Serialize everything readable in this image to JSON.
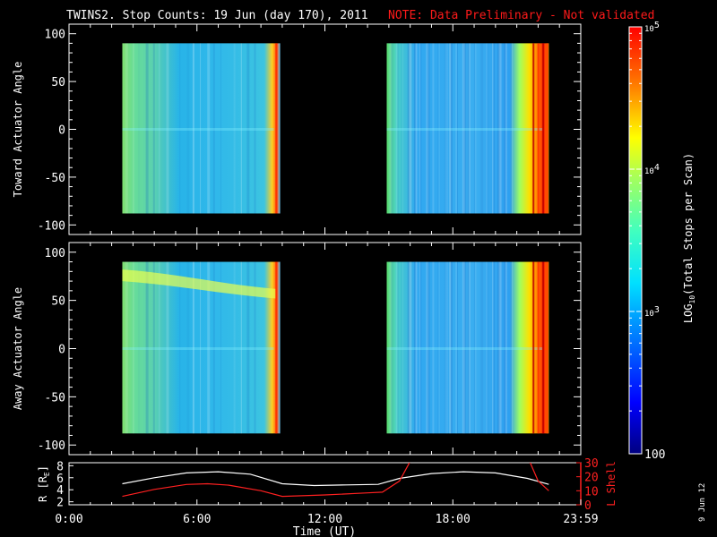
{
  "header": {
    "title": "TWINS2. Stop Counts: 19 Jun (day 170), 2011",
    "note": "NOTE: Data Preliminary - Not validated"
  },
  "colors": {
    "background": "#000000",
    "axes": "#ffffff",
    "note": "#ff1a1a",
    "r_line": "#ffffff",
    "lshell_line": "#ff2020"
  },
  "colorbar": {
    "label": "LOG10(Total Stops per Scan)",
    "label_prefix": "LOG",
    "label_sub": "10",
    "label_suffix": "(Total Stops per Scan)",
    "range": [
      100,
      100000
    ],
    "scale": "log",
    "ticks": [
      {
        "value": 100,
        "base": "100",
        "exp": ""
      },
      {
        "value": 1000,
        "base": "10",
        "exp": "3"
      },
      {
        "value": 10000,
        "base": "10",
        "exp": "4"
      },
      {
        "value": 100000,
        "base": "10",
        "exp": "5"
      }
    ]
  },
  "footer": {
    "xlabel": "Time (UT)",
    "date_stamp": "9 Jun 12"
  },
  "chart_data": [
    {
      "type": "heatmap",
      "name": "toward",
      "ylabel": "Toward Actuator Angle",
      "xlim": [
        0,
        24
      ],
      "ylim": [
        -110,
        110
      ],
      "yticks": [
        -100,
        -50,
        0,
        50,
        100
      ],
      "grid": false,
      "data_blocks": [
        {
          "x": [
            2.5,
            9.9
          ],
          "y": [
            -88,
            90
          ],
          "mean_log10_counts": 3.1
        },
        {
          "x": [
            14.9,
            22.5
          ],
          "y": [
            -88,
            90
          ],
          "mean_log10_counts": 3.2
        }
      ]
    },
    {
      "type": "heatmap",
      "name": "away",
      "ylabel": "Away Actuator Angle",
      "xlim": [
        0,
        24
      ],
      "ylim": [
        -110,
        110
      ],
      "yticks": [
        -100,
        -50,
        0,
        50,
        100
      ],
      "grid": false,
      "data_blocks": [
        {
          "x": [
            2.5,
            9.9
          ],
          "y": [
            -88,
            90
          ],
          "mean_log10_counts": 3.2
        },
        {
          "x": [
            14.9,
            22.5
          ],
          "y": [
            -88,
            90
          ],
          "mean_log10_counts": 3.2
        }
      ]
    },
    {
      "type": "line",
      "name": "orbit",
      "xlabel": "Time (UT)",
      "xticks": [
        {
          "value": 0,
          "label": "0:00"
        },
        {
          "value": 6,
          "label": "6:00"
        },
        {
          "value": 12,
          "label": "12:00"
        },
        {
          "value": 18,
          "label": "18:00"
        },
        {
          "value": 24,
          "label": "23:59"
        }
      ],
      "xlim": [
        0,
        24
      ],
      "left_axis": {
        "label": "R [RE]",
        "label_main": "R [R",
        "label_sub": "E",
        "label_end": "]",
        "ylim": [
          1.5,
          8.5
        ],
        "ticks": [
          2,
          4,
          6,
          8
        ]
      },
      "right_axis": {
        "label": "L Shell",
        "ylim": [
          0,
          30
        ],
        "ticks": [
          0,
          10,
          20,
          30
        ]
      },
      "series": [
        {
          "name": "R",
          "axis": "left",
          "x": [
            2.5,
            4,
            5.5,
            7,
            8.5,
            10,
            11.5,
            13,
            14.5,
            15.5,
            17,
            18.5,
            20,
            21.5,
            22.5
          ],
          "values": [
            5.0,
            6.0,
            6.8,
            7.0,
            6.6,
            5.0,
            4.7,
            4.8,
            4.9,
            5.9,
            6.7,
            7.0,
            6.8,
            5.9,
            4.9
          ]
        },
        {
          "name": "L Shell",
          "axis": "right",
          "x": [
            2.5,
            4,
            5.5,
            6.5,
            7.5,
            9,
            10,
            12,
            14,
            14.7,
            15.5,
            16,
            21.6,
            22,
            22.5
          ],
          "values": [
            6,
            11,
            14.5,
            15,
            14,
            10,
            6,
            7,
            8.5,
            9,
            17,
            31,
            31,
            17,
            10
          ]
        }
      ]
    }
  ]
}
